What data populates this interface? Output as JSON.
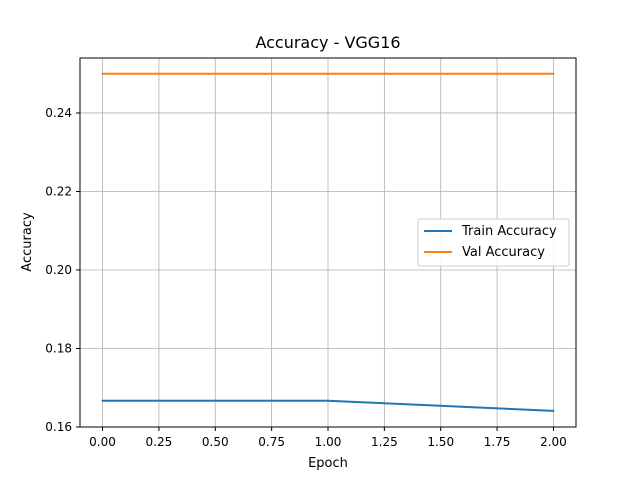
{
  "chart_data": {
    "type": "line",
    "title": "Accuracy - VGG16",
    "xlabel": "Epoch",
    "ylabel": "Accuracy",
    "x": [
      0,
      1,
      2
    ],
    "series": [
      {
        "name": "Train Accuracy",
        "values": [
          0.1667,
          0.1667,
          0.1641
        ],
        "color": "#1f77b4"
      },
      {
        "name": "Val Accuracy",
        "values": [
          0.25,
          0.25,
          0.25
        ],
        "color": "#ff7f0e"
      }
    ],
    "xticks": [
      0.0,
      0.25,
      0.5,
      0.75,
      1.0,
      1.25,
      1.5,
      1.75,
      2.0
    ],
    "xtick_labels": [
      "0.00",
      "0.25",
      "0.50",
      "0.75",
      "1.00",
      "1.25",
      "1.50",
      "1.75",
      "2.00"
    ],
    "yticks": [
      0.16,
      0.18,
      0.2,
      0.22,
      0.24
    ],
    "ytick_labels": [
      "0.16",
      "0.18",
      "0.20",
      "0.22",
      "0.24"
    ],
    "xlim": [
      -0.1,
      2.1
    ],
    "ylim": [
      0.16,
      0.254
    ],
    "grid": true,
    "legend_position": "center-right"
  }
}
